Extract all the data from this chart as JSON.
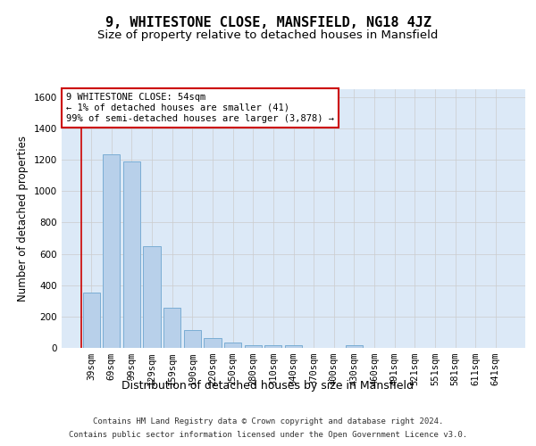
{
  "title": "9, WHITESTONE CLOSE, MANSFIELD, NG18 4JZ",
  "subtitle": "Size of property relative to detached houses in Mansfield",
  "xlabel": "Distribution of detached houses by size in Mansfield",
  "ylabel": "Number of detached properties",
  "footer_line1": "Contains HM Land Registry data © Crown copyright and database right 2024.",
  "footer_line2": "Contains public sector information licensed under the Open Government Licence v3.0.",
  "categories": [
    "39sqm",
    "69sqm",
    "99sqm",
    "129sqm",
    "159sqm",
    "190sqm",
    "220sqm",
    "250sqm",
    "280sqm",
    "310sqm",
    "340sqm",
    "370sqm",
    "400sqm",
    "430sqm",
    "460sqm",
    "491sqm",
    "521sqm",
    "551sqm",
    "581sqm",
    "611sqm",
    "641sqm"
  ],
  "values": [
    350,
    1235,
    1190,
    648,
    255,
    113,
    65,
    35,
    18,
    18,
    15,
    0,
    0,
    15,
    0,
    0,
    0,
    0,
    0,
    0,
    0
  ],
  "bar_color": "#b8d0ea",
  "bar_edge_color": "#7aadd4",
  "bar_width": 0.85,
  "ylim": [
    0,
    1650
  ],
  "yticks": [
    0,
    200,
    400,
    600,
    800,
    1000,
    1200,
    1400,
    1600
  ],
  "grid_color": "#cccccc",
  "bg_color": "#dce9f7",
  "property_size_sqm": 54,
  "annotation_line1": "9 WHITESTONE CLOSE: 54sqm",
  "annotation_line2": "← 1% of detached houses are smaller (41)",
  "annotation_line3": "99% of semi-detached houses are larger (3,878) →",
  "annotation_box_color": "#ffffff",
  "annotation_box_edge_color": "#cc0000",
  "red_line_color": "#cc0000",
  "title_fontsize": 11,
  "subtitle_fontsize": 9.5,
  "tick_fontsize": 7.5,
  "ylabel_fontsize": 8.5,
  "xlabel_fontsize": 9,
  "annotation_fontsize": 7.5,
  "footer_fontsize": 6.5
}
